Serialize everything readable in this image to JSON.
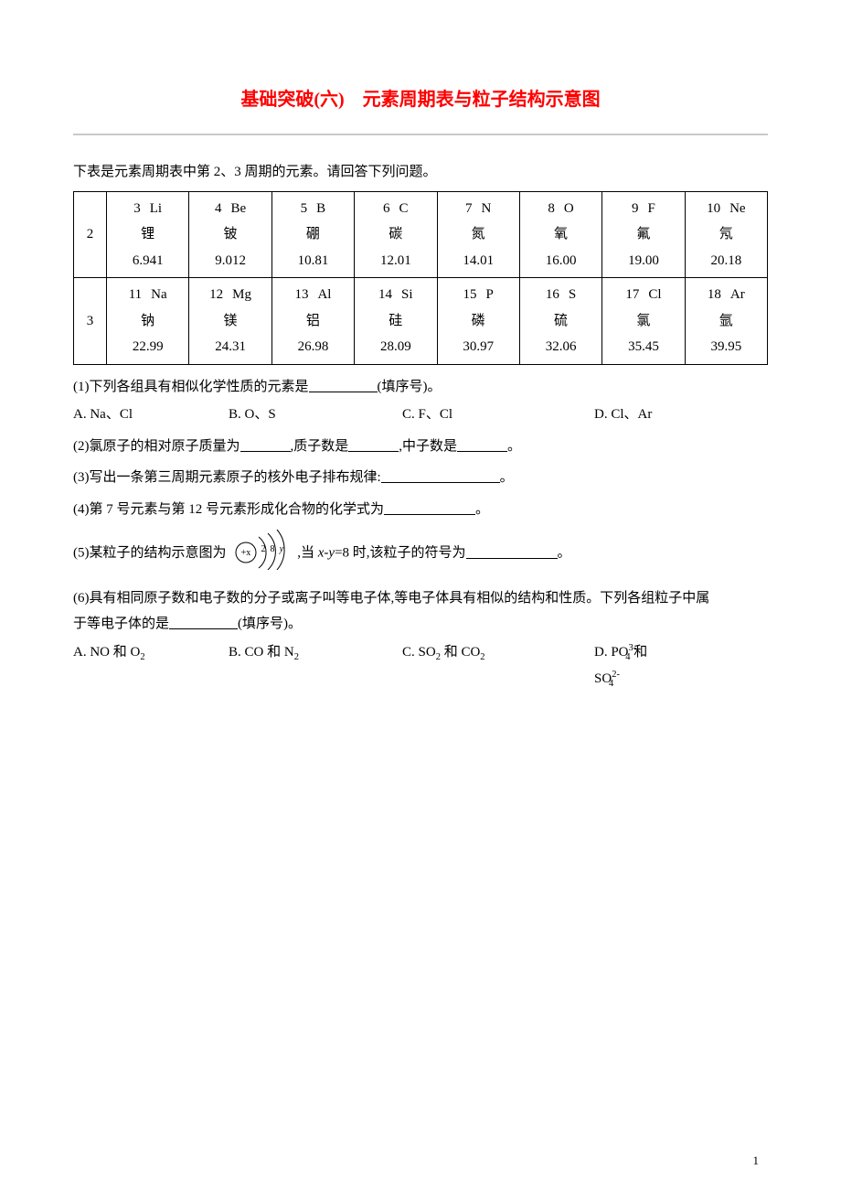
{
  "doc": {
    "title": "基础突破(六)　元素周期表与粒子结构示意图",
    "intro": "下表是元素周期表中第 2、3 周期的元素。请回答下列问题。",
    "page_number": "1"
  },
  "table": {
    "rows": [
      {
        "period": "2",
        "cells": [
          {
            "num": "3",
            "sym": "Li",
            "name": "锂",
            "mass": "6.941"
          },
          {
            "num": "4",
            "sym": "Be",
            "name": "铍",
            "mass": "9.012"
          },
          {
            "num": "5",
            "sym": "B",
            "name": "硼",
            "mass": "10.81"
          },
          {
            "num": "6",
            "sym": "C",
            "name": "碳",
            "mass": "12.01"
          },
          {
            "num": "7",
            "sym": "N",
            "name": "氮",
            "mass": "14.01"
          },
          {
            "num": "8",
            "sym": "O",
            "name": "氧",
            "mass": "16.00"
          },
          {
            "num": "9",
            "sym": "F",
            "name": "氟",
            "mass": "19.00"
          },
          {
            "num": "10",
            "sym": "Ne",
            "name": "氖",
            "mass": "20.18"
          }
        ]
      },
      {
        "period": "3",
        "cells": [
          {
            "num": "11",
            "sym": "Na",
            "name": "钠",
            "mass": "22.99"
          },
          {
            "num": "12",
            "sym": "Mg",
            "name": "镁",
            "mass": "24.31"
          },
          {
            "num": "13",
            "sym": "Al",
            "name": "铝",
            "mass": "26.98"
          },
          {
            "num": "14",
            "sym": "Si",
            "name": "硅",
            "mass": "28.09"
          },
          {
            "num": "15",
            "sym": "P",
            "name": "磷",
            "mass": "30.97"
          },
          {
            "num": "16",
            "sym": "S",
            "name": "硫",
            "mass": "32.06"
          },
          {
            "num": "17",
            "sym": "Cl",
            "name": "氯",
            "mass": "35.45"
          },
          {
            "num": "18",
            "sym": "Ar",
            "name": "氩",
            "mass": "39.95"
          }
        ]
      }
    ]
  },
  "q1": {
    "text": "(1)下列各组具有相似化学性质的元素是",
    "tail": "(填序号)。",
    "A": "A. Na、Cl",
    "B": "B. O、S",
    "C": "C. F、Cl",
    "D": "D. Cl、Ar"
  },
  "q2": {
    "p1": "(2)氯原子的相对原子质量为",
    "p2": ",质子数是",
    "p3": ",中子数是",
    "p4": "。"
  },
  "q3": {
    "p1": "(3)写出一条第三周期元素原子的核外电子排布规律:",
    "p2": "。"
  },
  "q4": {
    "p1": "(4)第 7 号元素与第 12 号元素形成化合物的化学式为",
    "p2": "。"
  },
  "q5": {
    "p1": "(5)某粒子的结构示意图为",
    "p2": ",当 ",
    "xminusy": "x-y",
    "p3": "=8 时,该粒子的符号为",
    "p4": "。",
    "diagram": {
      "center": "+x",
      "shell1": "2",
      "shell2": "8",
      "shell3": "y"
    }
  },
  "q6": {
    "p1": "(6)具有相同原子数和电子数的分子或离子叫等电子体,等电子体具有相似的结构和性质。下列各组粒子中属",
    "p2": "于等电子体的是",
    "tail": "(填序号)。",
    "A_pre": "A. NO 和 O",
    "A_sub": "2",
    "B_pre": "B. CO 和 N",
    "B_sub": "2",
    "C_pre1": "C. SO",
    "C_sub1": "2",
    "C_mid": " 和 CO",
    "C_sub2": "2",
    "D_pre1": "D. PO",
    "D_sup1": "3-",
    "D_sub1": "4",
    "D_mid": " 和 SO",
    "D_sup2": "2-",
    "D_sub2": "4"
  },
  "colors": {
    "title": "#ff0000",
    "rule": "#c9c9c9",
    "text": "#000000",
    "bg": "#ffffff"
  }
}
